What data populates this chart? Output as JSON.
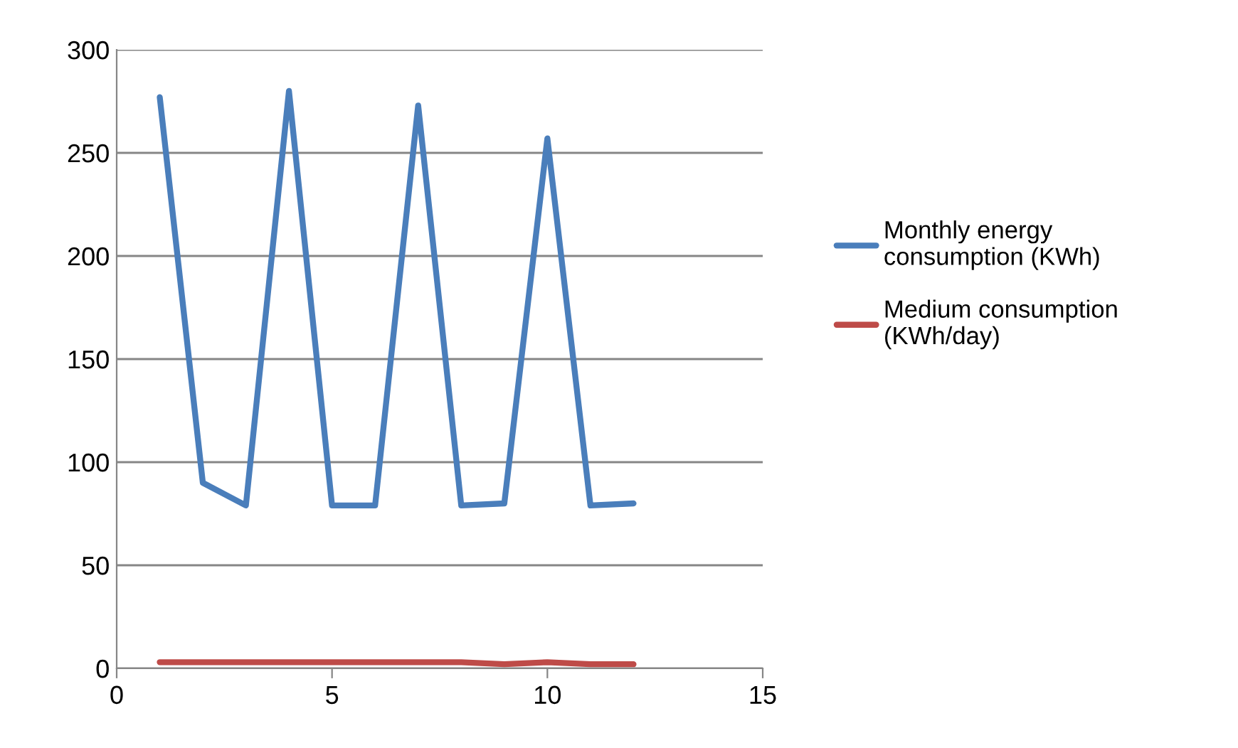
{
  "chart_data": {
    "type": "line",
    "x": [
      1,
      2,
      3,
      4,
      5,
      6,
      7,
      8,
      9,
      10,
      11,
      12
    ],
    "series": [
      {
        "name": "Monthly energy consumption (KWh)",
        "color": "#4a7ebb",
        "values": [
          277,
          90,
          79,
          280,
          79,
          79,
          273,
          79,
          80,
          257,
          79,
          80
        ]
      },
      {
        "name": "Medium consumption (KWh/day)",
        "color": "#be4b48",
        "values": [
          3,
          3,
          3,
          3,
          3,
          3,
          3,
          3,
          2,
          3,
          2,
          2
        ]
      }
    ],
    "xlim": [
      0,
      15
    ],
    "xticks": [
      0,
      5,
      10,
      15
    ],
    "ylim": [
      0,
      300
    ],
    "yticks": [
      0,
      50,
      100,
      150,
      200,
      250,
      300
    ],
    "grid": "y",
    "legend": "right",
    "marker": "none",
    "line_style": "solid"
  }
}
